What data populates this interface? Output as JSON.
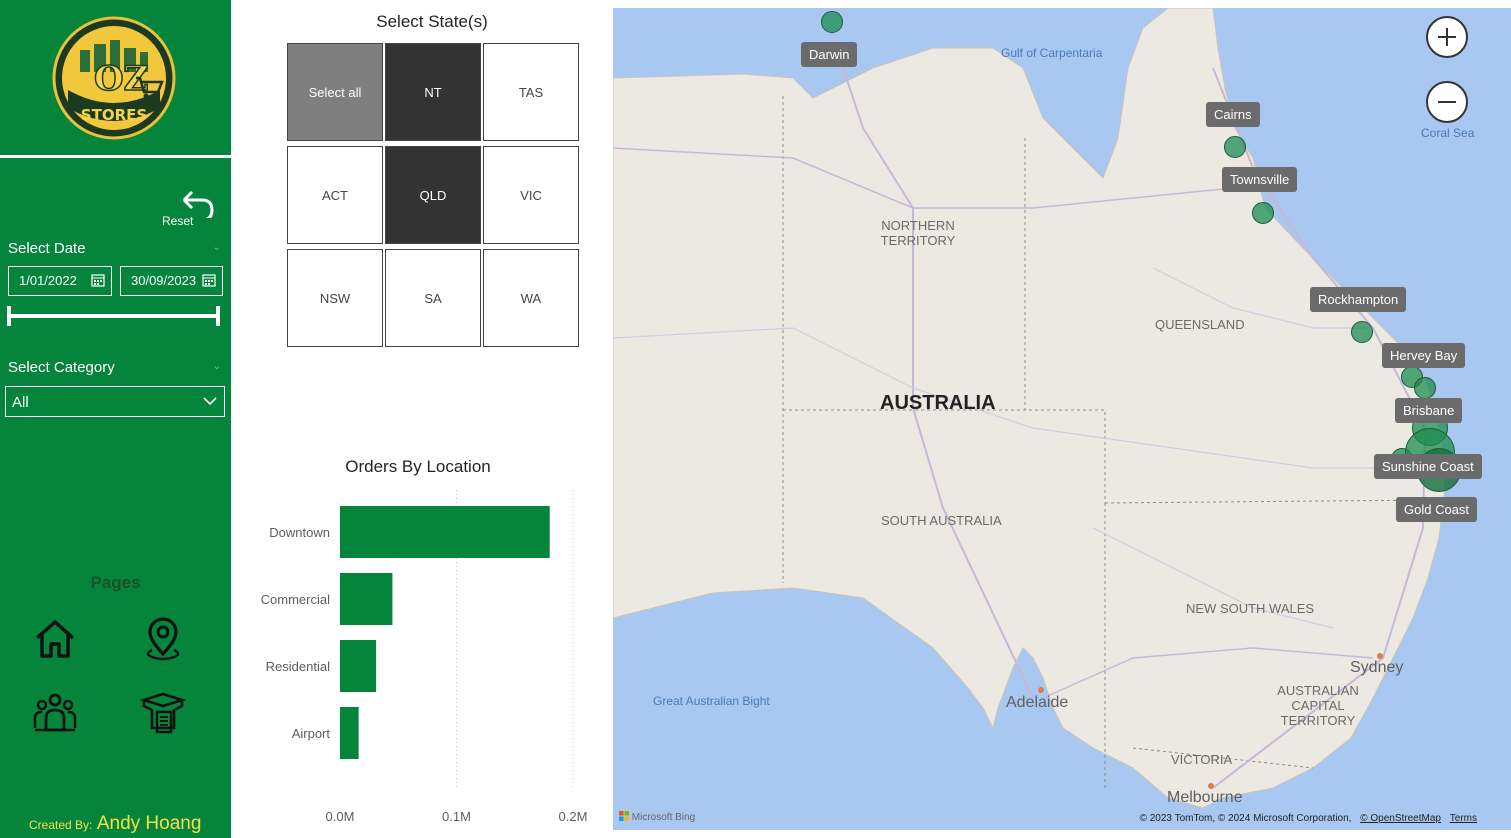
{
  "sidebar": {
    "logo_text_top": "OZ",
    "logo_text_bottom": "STORES",
    "reset_label": "Reset",
    "date_section_label": "Select Date",
    "date_start": "1/01/2022",
    "date_end": "30/09/2023",
    "category_section_label": "Select Category",
    "category_selected": "All",
    "pages_label": "Pages",
    "pages_icons": [
      "home-icon",
      "location-pin-icon",
      "people-icon",
      "product-box-icon"
    ],
    "credit_prefix": "Created By:",
    "credit_name": "Andy Hoang"
  },
  "state_slicer": {
    "title": "Select State(s)",
    "tiles": [
      {
        "label": "Select all",
        "state": "all"
      },
      {
        "label": "NT",
        "state": "selected"
      },
      {
        "label": "TAS",
        "state": "unselected"
      },
      {
        "label": "ACT",
        "state": "unselected"
      },
      {
        "label": "QLD",
        "state": "selected"
      },
      {
        "label": "VIC",
        "state": "unselected"
      },
      {
        "label": "NSW",
        "state": "unselected"
      },
      {
        "label": "SA",
        "state": "unselected"
      },
      {
        "label": "WA",
        "state": "unselected"
      }
    ]
  },
  "chart_data": {
    "type": "bar",
    "orientation": "horizontal",
    "title": "Orders By Location",
    "categories": [
      "Downtown",
      "Commercial",
      "Residential",
      "Airport"
    ],
    "values": [
      0.18,
      0.045,
      0.031,
      0.016
    ],
    "unit": "M",
    "xlim": [
      0,
      0.2
    ],
    "x_ticks": [
      "0.0M",
      "0.1M",
      "0.2M"
    ],
    "grid": "vertical-dotted",
    "bar_color": "#05853b"
  },
  "map": {
    "zoom_in_label": "+",
    "zoom_out_label": "−",
    "region_labels": [
      "NORTHERN TERRITORY",
      "QUEENSLAND",
      "SOUTH AUSTRALIA",
      "NEW SOUTH WALES",
      "AUSTRALIAN CAPITAL TERRITORY",
      "VICTORIA"
    ],
    "country_label": "AUSTRALIA",
    "water_labels": [
      "Gulf of Carpentaria",
      "Coral Sea",
      "Great Australian Bight"
    ],
    "city_labels": [
      "Adelaide",
      "Sydney",
      "Melbourne"
    ],
    "store_locations": [
      {
        "name": "Darwin",
        "size": 1
      },
      {
        "name": "Cairns",
        "size": 1
      },
      {
        "name": "Townsville",
        "size": 1
      },
      {
        "name": "Rockhampton",
        "size": 1
      },
      {
        "name": "Hervey Bay",
        "size": 1
      },
      {
        "name": "Brisbane",
        "size": 3
      },
      {
        "name": "Sunshine Coast",
        "size": 3
      },
      {
        "name": "Gold Coast",
        "size": 3
      }
    ],
    "bing_label": "Microsoft Bing",
    "attribution": "© 2023 TomTom, © 2024 Microsoft Corporation,",
    "osm_link": "© OpenStreetMap",
    "terms_link": "Terms"
  }
}
